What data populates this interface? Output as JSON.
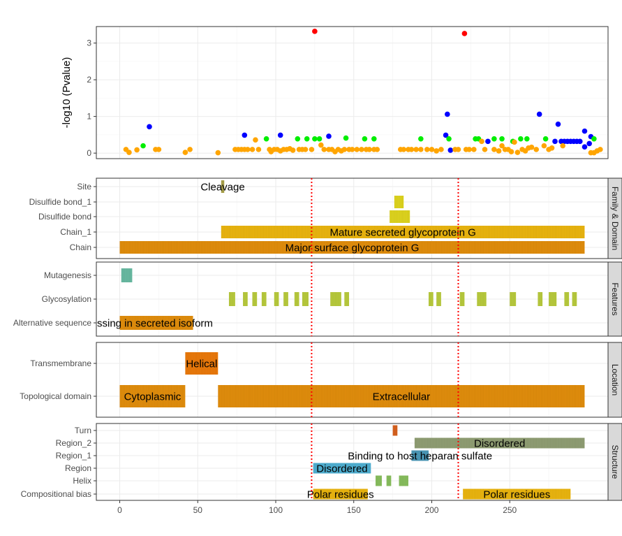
{
  "chart_data": {
    "type": "scatter",
    "x_axis": {
      "lim": [
        -15,
        313
      ],
      "ticks": [
        0,
        50,
        100,
        150,
        200,
        250
      ]
    },
    "colors": {
      "red": "#ff0000",
      "blue": "#0000ff",
      "green": "#00ee00",
      "orange": "#ffa500"
    },
    "pvalue_panel": {
      "ylabel": "-log10 (Pvalue)",
      "ylim": [
        -0.15,
        3.45
      ],
      "yticks": [
        0,
        1,
        2,
        3
      ],
      "points": [
        {
          "color": "red",
          "x": 125,
          "y": 3.32
        },
        {
          "color": "red",
          "x": 221,
          "y": 3.26
        },
        {
          "color": "blue",
          "x": 19,
          "y": 0.72
        },
        {
          "color": "blue",
          "x": 80,
          "y": 0.49
        },
        {
          "color": "blue",
          "x": 103,
          "y": 0.49
        },
        {
          "color": "blue",
          "x": 134,
          "y": 0.46
        },
        {
          "color": "blue",
          "x": 210,
          "y": 1.06
        },
        {
          "color": "blue",
          "x": 209,
          "y": 0.49
        },
        {
          "color": "blue",
          "x": 212,
          "y": 0.08
        },
        {
          "color": "blue",
          "x": 236,
          "y": 0.32
        },
        {
          "color": "blue",
          "x": 269,
          "y": 1.06
        },
        {
          "color": "blue",
          "x": 281,
          "y": 0.79
        },
        {
          "color": "blue",
          "x": 279,
          "y": 0.32
        },
        {
          "color": "blue",
          "x": 283,
          "y": 0.32
        },
        {
          "color": "blue",
          "x": 285,
          "y": 0.32
        },
        {
          "color": "blue",
          "x": 287,
          "y": 0.32
        },
        {
          "color": "blue",
          "x": 289,
          "y": 0.32
        },
        {
          "color": "blue",
          "x": 291,
          "y": 0.32
        },
        {
          "color": "blue",
          "x": 293,
          "y": 0.32
        },
        {
          "color": "blue",
          "x": 295,
          "y": 0.32
        },
        {
          "color": "blue",
          "x": 298,
          "y": 0.6
        },
        {
          "color": "blue",
          "x": 298,
          "y": 0.17
        },
        {
          "color": "blue",
          "x": 302,
          "y": 0.45
        },
        {
          "color": "blue",
          "x": 301,
          "y": 0.26
        },
        {
          "color": "green",
          "x": 15,
          "y": 0.2
        },
        {
          "color": "green",
          "x": 94,
          "y": 0.39
        },
        {
          "color": "green",
          "x": 114,
          "y": 0.39
        },
        {
          "color": "green",
          "x": 120,
          "y": 0.39
        },
        {
          "color": "green",
          "x": 125,
          "y": 0.39
        },
        {
          "color": "green",
          "x": 128,
          "y": 0.39
        },
        {
          "color": "green",
          "x": 145,
          "y": 0.41
        },
        {
          "color": "green",
          "x": 157,
          "y": 0.39
        },
        {
          "color": "green",
          "x": 163,
          "y": 0.39
        },
        {
          "color": "green",
          "x": 193,
          "y": 0.39
        },
        {
          "color": "green",
          "x": 211,
          "y": 0.39
        },
        {
          "color": "green",
          "x": 228,
          "y": 0.39
        },
        {
          "color": "green",
          "x": 230,
          "y": 0.39
        },
        {
          "color": "green",
          "x": 240,
          "y": 0.39
        },
        {
          "color": "green",
          "x": 245,
          "y": 0.39
        },
        {
          "color": "green",
          "x": 252,
          "y": 0.32
        },
        {
          "color": "green",
          "x": 257,
          "y": 0.39
        },
        {
          "color": "green",
          "x": 261,
          "y": 0.39
        },
        {
          "color": "green",
          "x": 273,
          "y": 0.39
        },
        {
          "color": "green",
          "x": 304,
          "y": 0.39
        },
        {
          "color": "orange",
          "x": 4,
          "y": 0.1
        },
        {
          "color": "orange",
          "x": 6,
          "y": 0.02
        },
        {
          "color": "orange",
          "x": 11,
          "y": 0.09
        },
        {
          "color": "orange",
          "x": 23,
          "y": 0.1
        },
        {
          "color": "orange",
          "x": 25,
          "y": 0.1
        },
        {
          "color": "orange",
          "x": 42,
          "y": 0.02
        },
        {
          "color": "orange",
          "x": 45,
          "y": 0.1
        },
        {
          "color": "orange",
          "x": 63,
          "y": 0.01
        },
        {
          "color": "orange",
          "x": 74,
          "y": 0.1
        },
        {
          "color": "orange",
          "x": 76,
          "y": 0.1
        },
        {
          "color": "orange",
          "x": 78,
          "y": 0.1
        },
        {
          "color": "orange",
          "x": 80,
          "y": 0.1
        },
        {
          "color": "orange",
          "x": 82,
          "y": 0.1
        },
        {
          "color": "orange",
          "x": 85,
          "y": 0.1
        },
        {
          "color": "orange",
          "x": 87,
          "y": 0.36
        },
        {
          "color": "orange",
          "x": 89,
          "y": 0.1
        },
        {
          "color": "orange",
          "x": 96,
          "y": 0.1
        },
        {
          "color": "orange",
          "x": 97,
          "y": 0.04
        },
        {
          "color": "orange",
          "x": 99,
          "y": 0.1
        },
        {
          "color": "orange",
          "x": 101,
          "y": 0.1
        },
        {
          "color": "orange",
          "x": 103,
          "y": 0.06
        },
        {
          "color": "orange",
          "x": 105,
          "y": 0.1
        },
        {
          "color": "orange",
          "x": 107,
          "y": 0.1
        },
        {
          "color": "orange",
          "x": 109,
          "y": 0.12
        },
        {
          "color": "orange",
          "x": 111,
          "y": 0.08
        },
        {
          "color": "orange",
          "x": 115,
          "y": 0.1
        },
        {
          "color": "orange",
          "x": 117,
          "y": 0.1
        },
        {
          "color": "orange",
          "x": 119,
          "y": 0.1
        },
        {
          "color": "orange",
          "x": 123,
          "y": 0.1
        },
        {
          "color": "orange",
          "x": 129,
          "y": 0.22
        },
        {
          "color": "orange",
          "x": 131,
          "y": 0.1
        },
        {
          "color": "orange",
          "x": 134,
          "y": 0.1
        },
        {
          "color": "orange",
          "x": 136,
          "y": 0.1
        },
        {
          "color": "orange",
          "x": 138,
          "y": 0.04
        },
        {
          "color": "orange",
          "x": 140,
          "y": 0.1
        },
        {
          "color": "orange",
          "x": 142,
          "y": 0.06
        },
        {
          "color": "orange",
          "x": 144,
          "y": 0.1
        },
        {
          "color": "orange",
          "x": 147,
          "y": 0.1
        },
        {
          "color": "orange",
          "x": 149,
          "y": 0.1
        },
        {
          "color": "orange",
          "x": 152,
          "y": 0.1
        },
        {
          "color": "orange",
          "x": 155,
          "y": 0.1
        },
        {
          "color": "orange",
          "x": 158,
          "y": 0.1
        },
        {
          "color": "orange",
          "x": 160,
          "y": 0.1
        },
        {
          "color": "orange",
          "x": 163,
          "y": 0.1
        },
        {
          "color": "orange",
          "x": 165,
          "y": 0.1
        },
        {
          "color": "orange",
          "x": 180,
          "y": 0.1
        },
        {
          "color": "orange",
          "x": 182,
          "y": 0.1
        },
        {
          "color": "orange",
          "x": 185,
          "y": 0.1
        },
        {
          "color": "orange",
          "x": 187,
          "y": 0.1
        },
        {
          "color": "orange",
          "x": 190,
          "y": 0.1
        },
        {
          "color": "orange",
          "x": 193,
          "y": 0.1
        },
        {
          "color": "orange",
          "x": 197,
          "y": 0.1
        },
        {
          "color": "orange",
          "x": 200,
          "y": 0.1
        },
        {
          "color": "orange",
          "x": 203,
          "y": 0.06
        },
        {
          "color": "orange",
          "x": 206,
          "y": 0.1
        },
        {
          "color": "orange",
          "x": 215,
          "y": 0.1
        },
        {
          "color": "orange",
          "x": 217,
          "y": 0.1
        },
        {
          "color": "orange",
          "x": 222,
          "y": 0.1
        },
        {
          "color": "orange",
          "x": 224,
          "y": 0.1
        },
        {
          "color": "orange",
          "x": 227,
          "y": 0.1
        },
        {
          "color": "orange",
          "x": 232,
          "y": 0.32
        },
        {
          "color": "orange",
          "x": 234,
          "y": 0.1
        },
        {
          "color": "orange",
          "x": 240,
          "y": 0.1
        },
        {
          "color": "orange",
          "x": 243,
          "y": 0.06
        },
        {
          "color": "orange",
          "x": 245,
          "y": 0.2
        },
        {
          "color": "orange",
          "x": 247,
          "y": 0.1
        },
        {
          "color": "orange",
          "x": 249,
          "y": 0.1
        },
        {
          "color": "orange",
          "x": 251,
          "y": 0.04
        },
        {
          "color": "orange",
          "x": 253,
          "y": 0.3
        },
        {
          "color": "orange",
          "x": 255,
          "y": 0.02
        },
        {
          "color": "orange",
          "x": 258,
          "y": 0.1
        },
        {
          "color": "orange",
          "x": 260,
          "y": 0.06
        },
        {
          "color": "orange",
          "x": 262,
          "y": 0.14
        },
        {
          "color": "orange",
          "x": 264,
          "y": 0.16
        },
        {
          "color": "orange",
          "x": 267,
          "y": 0.1
        },
        {
          "color": "orange",
          "x": 272,
          "y": 0.2
        },
        {
          "color": "orange",
          "x": 275,
          "y": 0.1
        },
        {
          "color": "orange",
          "x": 277,
          "y": 0.14
        },
        {
          "color": "orange",
          "x": 284,
          "y": 0.2
        },
        {
          "color": "orange",
          "x": 302,
          "y": 0.01
        },
        {
          "color": "orange",
          "x": 304,
          "y": 0.01
        },
        {
          "color": "orange",
          "x": 306,
          "y": 0.06
        },
        {
          "color": "orange",
          "x": 308,
          "y": 0.1
        }
      ]
    },
    "track_colors": {
      "gold": "#e8b30f",
      "darkorange": "#df8c0c",
      "yellowgreen": "#b6c83c",
      "teal": "#67b8a0",
      "orange": "#e8780a",
      "sage": "#8e9c72",
      "green": "#86bc5c",
      "blue": "#4eaed0",
      "steel": "#4a96b5",
      "brown": "#d4601e",
      "olive": "#a8a04a",
      "yellow": "#dcd21e"
    },
    "facets": [
      {
        "strip": "Family & Domain",
        "rows": [
          "Site",
          "Disulfide bond_1",
          "Disulfide bond",
          "Chain_1",
          "Chain"
        ],
        "features": [
          {
            "row": "Chain",
            "start": 0,
            "end": 298,
            "color": "darkorange",
            "label": "Major surface glycoprotein G"
          },
          {
            "row": "Chain_1",
            "start": 65,
            "end": 298,
            "color": "gold",
            "label": "Mature secreted glycoprotein G"
          },
          {
            "row": "Disulfide bond",
            "start": 173,
            "end": 186,
            "color": "yellow"
          },
          {
            "row": "Disulfide bond_1",
            "start": 176,
            "end": 182,
            "color": "yellow"
          },
          {
            "row": "Site",
            "start": 65,
            "end": 67,
            "color": "olive",
            "label": "Cleavage"
          }
        ]
      },
      {
        "strip": "Features",
        "rows": [
          "Mutagenesis",
          "Glycosylation",
          "Alternative sequence"
        ],
        "features": [
          {
            "row": "Mutagenesis",
            "start": 1,
            "end": 8,
            "color": "teal"
          },
          {
            "row": "Glycosylation",
            "start": 70,
            "end": 74,
            "color": "yellowgreen"
          },
          {
            "row": "Glycosylation",
            "start": 79,
            "end": 82,
            "color": "yellowgreen"
          },
          {
            "row": "Glycosylation",
            "start": 85,
            "end": 88,
            "color": "yellowgreen"
          },
          {
            "row": "Glycosylation",
            "start": 91,
            "end": 94,
            "color": "yellowgreen"
          },
          {
            "row": "Glycosylation",
            "start": 99,
            "end": 102,
            "color": "yellowgreen"
          },
          {
            "row": "Glycosylation",
            "start": 105,
            "end": 108,
            "color": "yellowgreen"
          },
          {
            "row": "Glycosylation",
            "start": 112,
            "end": 115,
            "color": "yellowgreen"
          },
          {
            "row": "Glycosylation",
            "start": 117,
            "end": 121,
            "color": "yellowgreen"
          },
          {
            "row": "Glycosylation",
            "start": 135,
            "end": 142,
            "color": "yellowgreen"
          },
          {
            "row": "Glycosylation",
            "start": 144,
            "end": 147,
            "color": "yellowgreen"
          },
          {
            "row": "Glycosylation",
            "start": 198,
            "end": 201,
            "color": "yellowgreen"
          },
          {
            "row": "Glycosylation",
            "start": 203,
            "end": 206,
            "color": "yellowgreen"
          },
          {
            "row": "Glycosylation",
            "start": 218,
            "end": 221,
            "color": "yellowgreen"
          },
          {
            "row": "Glycosylation",
            "start": 229,
            "end": 235,
            "color": "yellowgreen"
          },
          {
            "row": "Glycosylation",
            "start": 250,
            "end": 254,
            "color": "yellowgreen"
          },
          {
            "row": "Glycosylation",
            "start": 268,
            "end": 271,
            "color": "yellowgreen"
          },
          {
            "row": "Glycosylation",
            "start": 275,
            "end": 280,
            "color": "yellowgreen"
          },
          {
            "row": "Glycosylation",
            "start": 285,
            "end": 288,
            "color": "yellowgreen"
          },
          {
            "row": "Glycosylation",
            "start": 290,
            "end": 293,
            "color": "yellowgreen"
          },
          {
            "row": "Alternative sequence",
            "start": 0,
            "end": 47,
            "color": "darkorange",
            "label": "ssing in secreted isoform"
          }
        ]
      },
      {
        "strip": "Location",
        "rows": [
          "Transmembrane",
          "Topological domain"
        ],
        "features": [
          {
            "row": "Transmembrane",
            "start": 42,
            "end": 63,
            "color": "orange",
            "label": "Helical"
          },
          {
            "row": "Topological domain",
            "start": 0,
            "end": 42,
            "color": "darkorange",
            "label": "Cytoplasmic"
          },
          {
            "row": "Topological domain",
            "start": 63,
            "end": 298,
            "color": "darkorange",
            "label": "Extracellular"
          }
        ]
      },
      {
        "strip": "Structure",
        "rows": [
          "Turn",
          "Region_2",
          "Region_1",
          "Region",
          "Helix",
          "Compositional bias"
        ],
        "features": [
          {
            "row": "Turn",
            "start": 175,
            "end": 178,
            "color": "brown"
          },
          {
            "row": "Region_2",
            "start": 189,
            "end": 298,
            "color": "sage",
            "label": "Disordered"
          },
          {
            "row": "Region_1",
            "start": 187,
            "end": 198,
            "color": "steel",
            "label": "Binding to host heparan sulfate"
          },
          {
            "row": "Region",
            "start": 124,
            "end": 161,
            "color": "blue",
            "label": "Disordered"
          },
          {
            "row": "Helix",
            "start": 164,
            "end": 168,
            "color": "green"
          },
          {
            "row": "Helix",
            "start": 171,
            "end": 174,
            "color": "green"
          },
          {
            "row": "Helix",
            "start": 179,
            "end": 185,
            "color": "green"
          },
          {
            "row": "Compositional bias",
            "start": 124,
            "end": 159,
            "color": "gold",
            "label": "Polar residues"
          },
          {
            "row": "Compositional bias",
            "start": 220,
            "end": 289,
            "color": "gold",
            "label": "Polar residues"
          }
        ]
      }
    ],
    "vlines": [
      123,
      217
    ],
    "vline_color": "#ff0000"
  }
}
